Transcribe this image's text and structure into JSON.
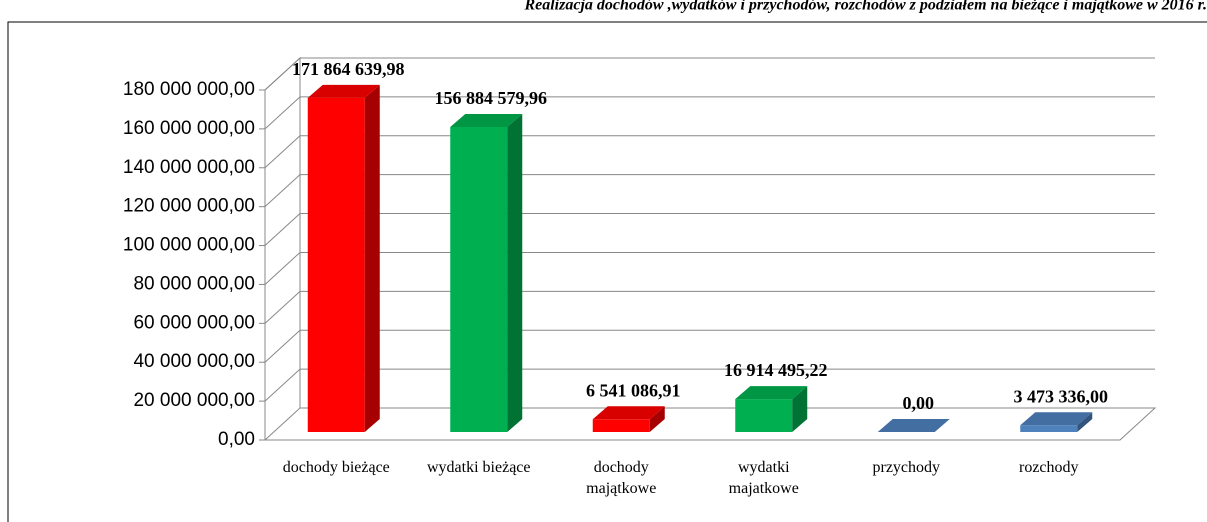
{
  "chart_data": {
    "type": "bar3d",
    "title": "Realizacja dochodów ,wydatków i przychodów, rozchodów z podziałem na bieżące i majątkowe w 2016 r.",
    "categories": [
      "dochody bieżące",
      "wydatki bieżące",
      "dochody majątkowe",
      "wydatki majatkowe",
      "przychody",
      "rozchody"
    ],
    "values": [
      171864639.98,
      156884579.96,
      6541086.91,
      16914495.22,
      0,
      3473336
    ],
    "value_labels": [
      "171 864 639,98",
      "156 884 579,96",
      "6 541 086,91",
      "16 914 495,22",
      "0,00",
      "3 473 336,00"
    ],
    "colors": [
      "#ff0000",
      "#00b050",
      "#ff0000",
      "#00b050",
      "#4f81bd",
      "#4f81bd"
    ],
    "ylim": [
      0,
      180000000
    ],
    "yticks": [
      {
        "value": 0,
        "label": "0,00"
      },
      {
        "value": 20000000,
        "label": "20 000 000,00"
      },
      {
        "value": 40000000,
        "label": "40 000 000,00"
      },
      {
        "value": 60000000,
        "label": "60 000 000,00"
      },
      {
        "value": 80000000,
        "label": "80 000 000,00"
      },
      {
        "value": 100000000,
        "label": "100 000 000,00"
      },
      {
        "value": 120000000,
        "label": "120 000 000,00"
      },
      {
        "value": 140000000,
        "label": "140 000 000,00"
      },
      {
        "value": 160000000,
        "label": "160 000 000,00"
      },
      {
        "value": 180000000,
        "label": "180 000 000,00"
      }
    ],
    "grid": true
  }
}
